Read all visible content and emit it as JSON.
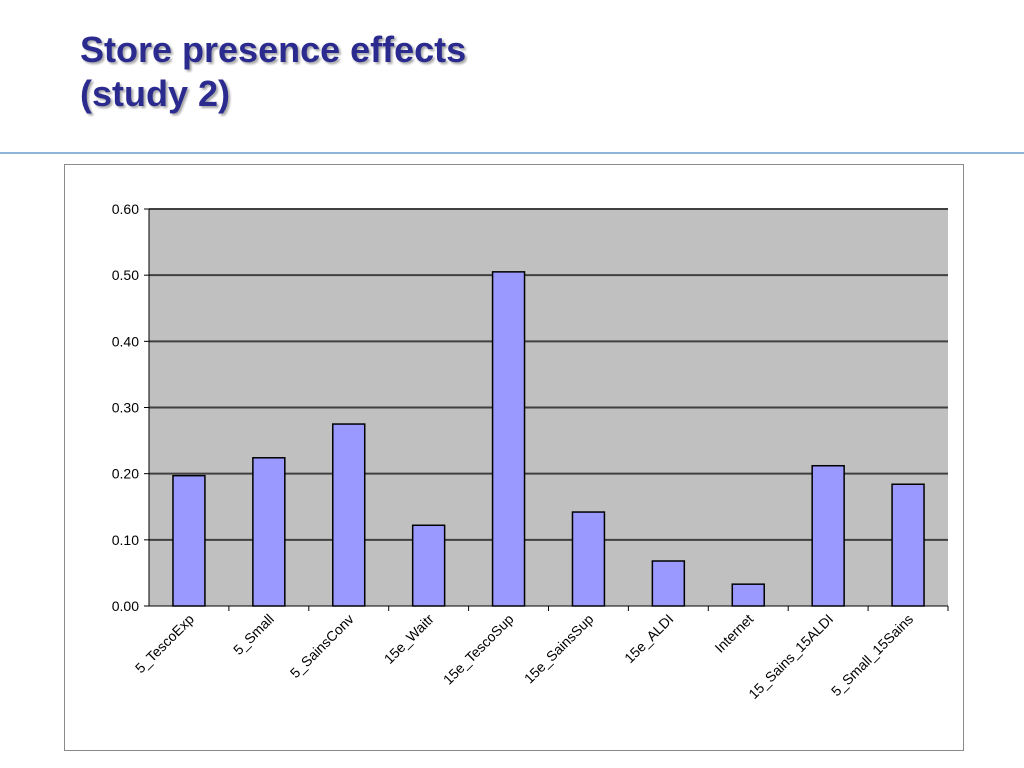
{
  "slide": {
    "title_line1": "Store presence effects",
    "title_line2": "(study 2)"
  },
  "colors": {
    "title": "#2b2b8f",
    "rule": "#8fb4d9",
    "plot_bg": "#c0c0c0",
    "bar_fill": "#9999ff",
    "bar_stroke": "#000000",
    "grid": "#404040"
  },
  "chart_data": {
    "type": "bar",
    "title": "",
    "xlabel": "",
    "ylabel": "",
    "ylim": [
      0,
      0.6
    ],
    "yticks": [
      "0.00",
      "0.10",
      "0.20",
      "0.30",
      "0.40",
      "0.50",
      "0.60"
    ],
    "grid": true,
    "legend": "none",
    "categories": [
      "5_TescoExp",
      "5_Small",
      "5_SainsConv",
      "15e_Waitr",
      "15e_TescoSup",
      "15e_SainsSup",
      "15e_ALDI",
      "Internet",
      "15_Sains_15ALDI",
      "5_Small_15Sains"
    ],
    "values": [
      0.197,
      0.224,
      0.275,
      0.122,
      0.505,
      0.142,
      0.068,
      0.033,
      0.212,
      0.184
    ]
  }
}
